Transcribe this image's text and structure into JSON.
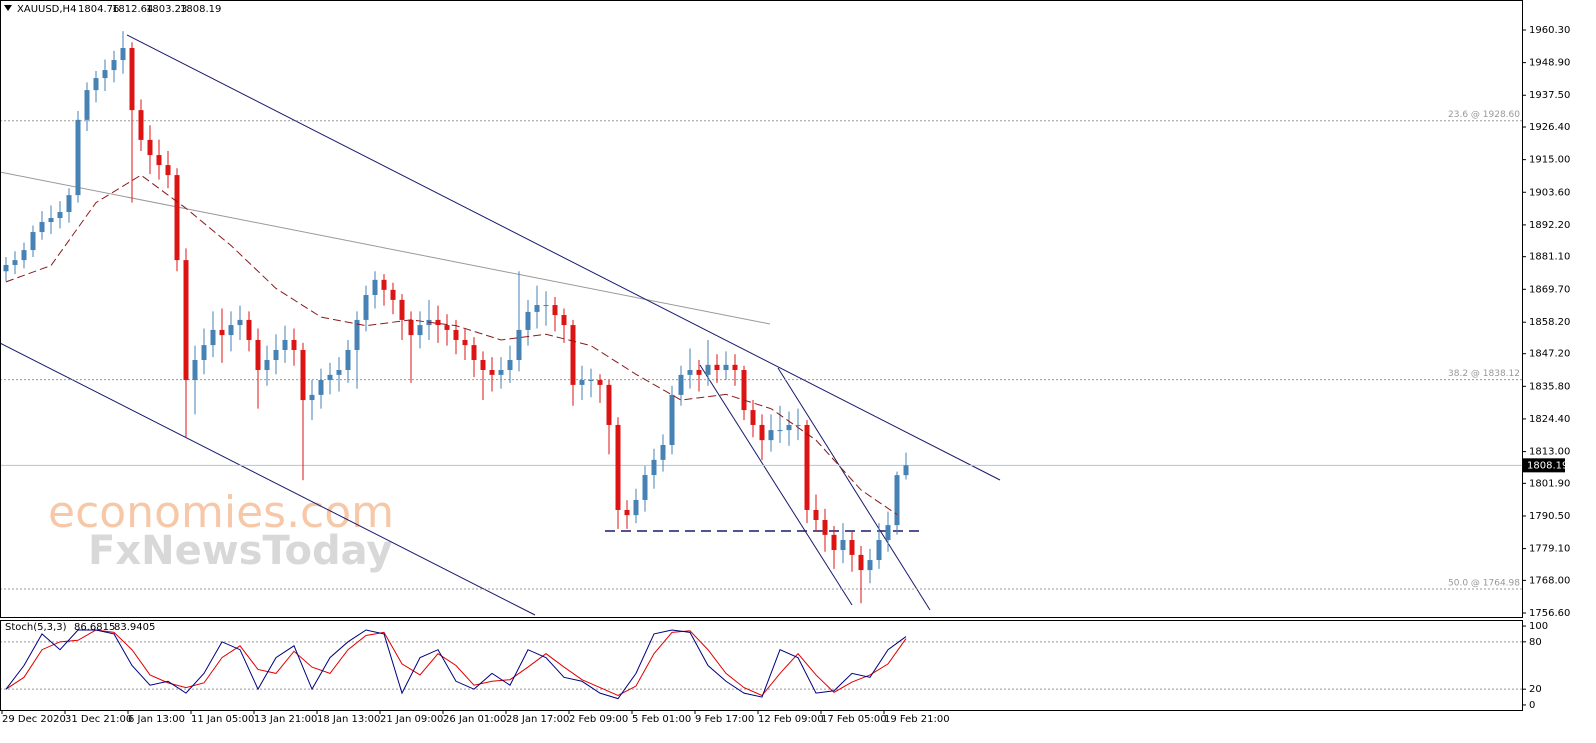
{
  "chart_data": {
    "type": "candlestick",
    "symbol": "XAUUSD,H4",
    "up_color": "#4682b4",
    "down_color": "#dc1414",
    "ylim": [
      1755.2,
      1970.78
    ],
    "yticks": [
      {
        "value": 1756.6,
        "label": "1756.60"
      },
      {
        "value": 1768.0,
        "label": "1768.00"
      },
      {
        "value": 1779.1,
        "label": "1779.10"
      },
      {
        "value": 1790.5,
        "label": "1790.50"
      },
      {
        "value": 1801.9,
        "label": "1801.90"
      },
      {
        "value": 1813.0,
        "label": "1813.00"
      },
      {
        "value": 1824.4,
        "label": "1824.40"
      },
      {
        "value": 1835.8,
        "label": "1835.80"
      },
      {
        "value": 1847.2,
        "label": "1847.20"
      },
      {
        "value": 1858.2,
        "label": "1858.20"
      },
      {
        "value": 1869.7,
        "label": "1869.70"
      },
      {
        "value": 1881.1,
        "label": "1881.10"
      },
      {
        "value": 1892.2,
        "label": "1892.20"
      },
      {
        "value": 1903.6,
        "label": "1903.60"
      },
      {
        "value": 1915.0,
        "label": "1915.00"
      },
      {
        "value": 1926.4,
        "label": "1926.40"
      },
      {
        "value": 1937.5,
        "label": "1937.50"
      },
      {
        "value": 1948.9,
        "label": "1948.90"
      },
      {
        "value": 1960.3,
        "label": "1960.30"
      }
    ],
    "xticks": [
      {
        "value": 0,
        "label": "29 Dec 2020"
      },
      {
        "value": 7,
        "label": "31 Dec 21:00"
      },
      {
        "value": 14,
        "label": "6 Jan 13:00"
      },
      {
        "value": 21,
        "label": "11 Jan 05:00"
      },
      {
        "value": 28,
        "label": "13 Jan 21:00"
      },
      {
        "value": 35,
        "label": "18 Jan 13:00"
      },
      {
        "value": 42,
        "label": "21 Jan 09:00"
      },
      {
        "value": 49,
        "label": "26 Jan 01:00"
      },
      {
        "value": 56,
        "label": "28 Jan 17:00"
      },
      {
        "value": 63,
        "label": "2 Feb 09:00"
      },
      {
        "value": 70,
        "label": "5 Feb 01:00"
      },
      {
        "value": 77,
        "label": "9 Feb 17:00"
      },
      {
        "value": 84,
        "label": "12 Feb 09:00"
      },
      {
        "value": 91,
        "label": "17 Feb 05:00"
      },
      {
        "value": 98,
        "label": "19 Feb 21:00"
      }
    ],
    "candles": [
      [
        1876.0,
        1881.0,
        1872.5,
        1878.2
      ],
      [
        1878.2,
        1883.0,
        1875.0,
        1879.9
      ],
      [
        1879.9,
        1886.0,
        1877.0,
        1883.4
      ],
      [
        1883.4,
        1892.0,
        1881.0,
        1889.7
      ],
      [
        1889.7,
        1897.0,
        1887.0,
        1893.2
      ],
      [
        1893.2,
        1899.0,
        1889.0,
        1894.6
      ],
      [
        1894.6,
        1900.5,
        1891.0,
        1896.7
      ],
      [
        1896.7,
        1905.0,
        1893.0,
        1902.6
      ],
      [
        1902.6,
        1932.0,
        1900.0,
        1928.9
      ],
      [
        1928.9,
        1942.0,
        1925.0,
        1939.3
      ],
      [
        1939.3,
        1946.0,
        1935.0,
        1943.5
      ],
      [
        1943.5,
        1950.0,
        1939.0,
        1946.3
      ],
      [
        1946.3,
        1953.0,
        1942.0,
        1949.8
      ],
      [
        1949.8,
        1959.9,
        1945.0,
        1954.0
      ],
      [
        1954.0,
        1956.0,
        1900.0,
        1932.3
      ],
      [
        1932.3,
        1936.0,
        1918.0,
        1921.9
      ],
      [
        1921.9,
        1927.0,
        1910.0,
        1916.6
      ],
      [
        1916.6,
        1922.0,
        1908.0,
        1913.1
      ],
      [
        1913.1,
        1918.0,
        1905.0,
        1909.6
      ],
      [
        1909.6,
        1912.0,
        1876.0,
        1879.9
      ],
      [
        1879.9,
        1884.0,
        1818.0,
        1838.0
      ],
      [
        1838.0,
        1850.0,
        1826.0,
        1845.0
      ],
      [
        1845.0,
        1856.0,
        1840.0,
        1850.2
      ],
      [
        1850.2,
        1862.0,
        1846.0,
        1855.5
      ],
      [
        1855.5,
        1863.0,
        1844.0,
        1853.7
      ],
      [
        1853.7,
        1862.0,
        1848.0,
        1857.2
      ],
      [
        1857.2,
        1864.0,
        1852.0,
        1859.0
      ],
      [
        1859.0,
        1862.0,
        1848.0,
        1852.0
      ],
      [
        1852.0,
        1856.0,
        1828.0,
        1841.5
      ],
      [
        1841.5,
        1850.0,
        1836.0,
        1845.0
      ],
      [
        1845.0,
        1854.0,
        1840.0,
        1848.5
      ],
      [
        1848.5,
        1857.0,
        1844.0,
        1852.0
      ],
      [
        1852.0,
        1856.0,
        1843.0,
        1848.5
      ],
      [
        1848.5,
        1851.0,
        1803.0,
        1831.0
      ],
      [
        1831.0,
        1838.0,
        1824.0,
        1832.8
      ],
      [
        1832.8,
        1842.0,
        1828.0,
        1838.0
      ],
      [
        1838.0,
        1844.0,
        1833.0,
        1839.8
      ],
      [
        1839.8,
        1846.0,
        1834.0,
        1841.5
      ],
      [
        1841.5,
        1852.0,
        1837.0,
        1848.5
      ],
      [
        1848.5,
        1862.0,
        1835.0,
        1859.0
      ],
      [
        1859.0,
        1871.0,
        1855.0,
        1867.7
      ],
      [
        1867.7,
        1876.0,
        1863.0,
        1873.0
      ],
      [
        1873.0,
        1875.0,
        1864.0,
        1869.5
      ],
      [
        1869.5,
        1872.0,
        1861.0,
        1866.0
      ],
      [
        1866.0,
        1868.0,
        1852.0,
        1859.0
      ],
      [
        1859.0,
        1862.0,
        1837.0,
        1853.7
      ],
      [
        1853.7,
        1862.0,
        1849.0,
        1857.2
      ],
      [
        1857.2,
        1866.0,
        1852.0,
        1859.0
      ],
      [
        1859.0,
        1864.0,
        1851.0,
        1857.2
      ],
      [
        1857.2,
        1861.0,
        1850.0,
        1855.5
      ],
      [
        1855.5,
        1859.0,
        1847.0,
        1852.0
      ],
      [
        1852.0,
        1856.0,
        1845.0,
        1850.2
      ],
      [
        1850.2,
        1853.0,
        1839.0,
        1845.0
      ],
      [
        1845.0,
        1848.0,
        1831.0,
        1841.5
      ],
      [
        1841.5,
        1846.0,
        1834.0,
        1839.8
      ],
      [
        1839.8,
        1846.0,
        1835.0,
        1841.5
      ],
      [
        1841.5,
        1850.0,
        1837.0,
        1845.0
      ],
      [
        1845.0,
        1876.0,
        1841.0,
        1855.5
      ],
      [
        1855.5,
        1866.0,
        1850.0,
        1861.8
      ],
      [
        1861.8,
        1871.0,
        1856.0,
        1864.2
      ],
      [
        1864.2,
        1869.0,
        1857.0,
        1864.2
      ],
      [
        1864.2,
        1867.0,
        1855.0,
        1860.7
      ],
      [
        1860.7,
        1863.0,
        1851.0,
        1857.2
      ],
      [
        1857.2,
        1859.0,
        1829.0,
        1836.3
      ],
      [
        1836.3,
        1843.0,
        1831.0,
        1838.0
      ],
      [
        1838.0,
        1842.0,
        1832.0,
        1838.0
      ],
      [
        1838.0,
        1840.0,
        1830.0,
        1836.3
      ],
      [
        1836.3,
        1838.0,
        1812.0,
        1822.3
      ],
      [
        1822.3,
        1825.0,
        1786.0,
        1792.6
      ],
      [
        1792.6,
        1796.0,
        1786.0,
        1790.8
      ],
      [
        1790.8,
        1800.0,
        1788.0,
        1796.1
      ],
      [
        1796.1,
        1808.0,
        1792.0,
        1804.8
      ],
      [
        1804.8,
        1814.0,
        1800.0,
        1810.1
      ],
      [
        1810.1,
        1819.0,
        1806.0,
        1815.3
      ],
      [
        1815.3,
        1836.0,
        1812.0,
        1832.8
      ],
      [
        1832.8,
        1843.0,
        1829.0,
        1839.8
      ],
      [
        1839.8,
        1849.0,
        1835.0,
        1841.5
      ],
      [
        1841.5,
        1845.0,
        1834.0,
        1839.8
      ],
      [
        1839.8,
        1852.0,
        1836.0,
        1843.3
      ],
      [
        1843.3,
        1847.0,
        1837.0,
        1841.5
      ],
      [
        1841.5,
        1848.0,
        1838.0,
        1843.3
      ],
      [
        1843.3,
        1847.0,
        1836.0,
        1841.5
      ],
      [
        1841.5,
        1843.0,
        1824.0,
        1827.5
      ],
      [
        1827.5,
        1831.0,
        1818.0,
        1822.3
      ],
      [
        1822.3,
        1826.0,
        1810.0,
        1817.0
      ],
      [
        1817.0,
        1826.0,
        1813.0,
        1820.5
      ],
      [
        1820.5,
        1829.0,
        1816.0,
        1820.5
      ],
      [
        1820.5,
        1827.0,
        1815.0,
        1822.3
      ],
      [
        1822.3,
        1828.0,
        1817.0,
        1822.3
      ],
      [
        1822.3,
        1824.0,
        1788.0,
        1792.6
      ],
      [
        1792.6,
        1798.0,
        1785.0,
        1789.1
      ],
      [
        1789.1,
        1793.0,
        1778.0,
        1783.9
      ],
      [
        1783.9,
        1787.0,
        1772.0,
        1778.6
      ],
      [
        1778.6,
        1788.0,
        1774.0,
        1782.1
      ],
      [
        1782.1,
        1785.0,
        1771.0,
        1776.9
      ],
      [
        1776.9,
        1780.0,
        1760.0,
        1771.6
      ],
      [
        1771.6,
        1779.0,
        1767.0,
        1775.1
      ],
      [
        1775.1,
        1788.0,
        1772.0,
        1782.1
      ],
      [
        1782.1,
        1792.0,
        1778.0,
        1787.3
      ],
      [
        1787.3,
        1806.0,
        1784.0,
        1804.76
      ],
      [
        1804.76,
        1812.64,
        1803.23,
        1808.19
      ]
    ],
    "ma": {
      "color": "#8b1a1a",
      "x": [
        0,
        5,
        10,
        15,
        20,
        25,
        30,
        35,
        40,
        45,
        50,
        55,
        60,
        65,
        70,
        75,
        80,
        85,
        90,
        95,
        99
      ],
      "values": [
        1872.3,
        1878.0,
        1900.0,
        1909.6,
        1898.0,
        1885.0,
        1870.0,
        1860.0,
        1857.0,
        1859.0,
        1857.0,
        1852.0,
        1854.0,
        1850.0,
        1840.0,
        1831.0,
        1833.0,
        1828.0,
        1817.0,
        1799.6,
        1791.0
      ]
    },
    "levels": [
      {
        "label": "23.6 @ 1928.60",
        "value": 1928.6
      },
      {
        "label": "38.2 @ 1838.12",
        "value": 1838.12
      },
      {
        "label": "50.0 @ 1764.98",
        "value": 1764.98
      }
    ],
    "watermark": [
      "economies.com",
      "FxNewsToday"
    ],
    "stoch": {
      "title": "Stoch(5,3,3)",
      "ylim": [
        -6.4,
        106.4
      ],
      "yticks": [
        0,
        20,
        80,
        100
      ],
      "x": [
        0,
        2,
        4,
        6,
        8,
        10,
        12,
        14,
        16,
        18,
        20,
        22,
        24,
        26,
        28,
        30,
        32,
        34,
        36,
        38,
        40,
        42,
        44,
        46,
        48,
        50,
        52,
        54,
        56,
        58,
        60,
        62,
        64,
        66,
        68,
        70,
        72,
        74,
        76,
        78,
        80,
        82,
        84,
        86,
        88,
        90,
        92,
        94,
        96,
        98,
        100
      ],
      "main": {
        "color": "#000080",
        "values": [
          20,
          50,
          90,
          70,
          95,
          95,
          90,
          50,
          25,
          30,
          15,
          40,
          80,
          70,
          20,
          60,
          75,
          20,
          60,
          80,
          95,
          90,
          15,
          60,
          70,
          30,
          20,
          40,
          25,
          70,
          60,
          35,
          30,
          15,
          8,
          40,
          90,
          95,
          92,
          50,
          30,
          15,
          10,
          70,
          60,
          15,
          18,
          40,
          35,
          70,
          86.6815
        ]
      },
      "signal": {
        "color": "#e00000",
        "values": [
          20,
          35,
          70,
          80,
          82,
          95,
          92,
          70,
          38,
          28,
          22,
          28,
          60,
          75,
          45,
          40,
          68,
          48,
          40,
          70,
          88,
          92,
          52,
          38,
          65,
          50,
          25,
          30,
          32,
          48,
          65,
          48,
          32,
          22,
          12,
          24,
          65,
          92,
          94,
          70,
          40,
          22,
          12,
          40,
          65,
          38,
          16,
          29,
          38,
          52,
          83.9405
        ]
      }
    }
  }
}
